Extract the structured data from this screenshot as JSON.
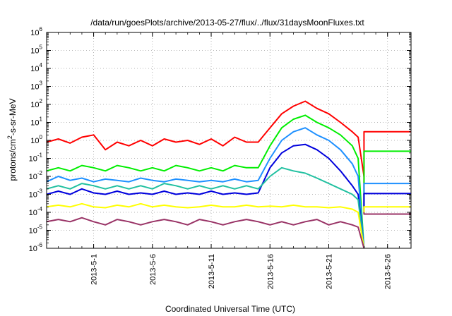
{
  "chart_data": {
    "type": "line",
    "title": "/data/run/goesPlots/archive/2013-05-27/flux/../flux/31daysMoonFluxes.txt",
    "xlabel": "Coordinated Universal Time (UTC)",
    "ylabel": {
      "base": "protons/cm",
      "sup": "2",
      "rest": "-s-sr-MeV"
    },
    "x_scale": "date",
    "xlim": [
      "2013-04-27",
      "2013-05-28"
    ],
    "x_ticks": [
      "2013-5-1",
      "2013-5-6",
      "2013-5-11",
      "2013-5-16",
      "2013-5-21",
      "2013-5-26"
    ],
    "x_tick_dates": [
      "2013-05-01",
      "2013-05-06",
      "2013-05-11",
      "2013-05-16",
      "2013-05-21",
      "2013-05-26"
    ],
    "y_scale": "log",
    "ylim": [
      1e-06,
      1000000.0
    ],
    "y_ticks": [
      {
        "base": "10",
        "exp": "-6",
        "value": 1e-06
      },
      {
        "base": "10",
        "exp": "-5",
        "value": 1e-05
      },
      {
        "base": "10",
        "exp": "-4",
        "value": 0.0001
      },
      {
        "base": "10",
        "exp": "-3",
        "value": 0.001
      },
      {
        "base": "10",
        "exp": "-2",
        "value": 0.01
      },
      {
        "base": "10",
        "exp": "-1",
        "value": 0.1
      },
      {
        "base": "10",
        "exp": "0",
        "value": 1
      },
      {
        "base": "10",
        "exp": "1",
        "value": 10
      },
      {
        "base": "10",
        "exp": "2",
        "value": 100
      },
      {
        "base": "10",
        "exp": "3",
        "value": 1000
      },
      {
        "base": "10",
        "exp": "4",
        "value": 10000
      },
      {
        "base": "10",
        "exp": "5",
        "value": 100000
      },
      {
        "base": "10",
        "exp": "6",
        "value": 1000000
      }
    ],
    "grid": true,
    "series": [
      {
        "color": "#ff0000",
        "points": [
          [
            "2013-04-27",
            0.8
          ],
          [
            "2013-04-28",
            1.2
          ],
          [
            "2013-04-29",
            0.7
          ],
          [
            "2013-04-30",
            1.5
          ],
          [
            "2013-05-01",
            2.0
          ],
          [
            "2013-05-02",
            0.3
          ],
          [
            "2013-05-03",
            0.8
          ],
          [
            "2013-05-04",
            0.5
          ],
          [
            "2013-05-05",
            1.0
          ],
          [
            "2013-05-06",
            0.5
          ],
          [
            "2013-05-07",
            1.2
          ],
          [
            "2013-05-08",
            0.8
          ],
          [
            "2013-05-09",
            1.0
          ],
          [
            "2013-05-10",
            0.6
          ],
          [
            "2013-05-11",
            1.2
          ],
          [
            "2013-05-12",
            0.5
          ],
          [
            "2013-05-13",
            1.5
          ],
          [
            "2013-05-14",
            0.8
          ],
          [
            "2013-05-15",
            0.8
          ],
          [
            "2013-05-16",
            5.0
          ],
          [
            "2013-05-17",
            30
          ],
          [
            "2013-05-18",
            80
          ],
          [
            "2013-05-19",
            150
          ],
          [
            "2013-05-20",
            60
          ],
          [
            "2013-05-21",
            30
          ],
          [
            "2013-05-22",
            10
          ],
          [
            "2013-05-23",
            3
          ],
          [
            "2013-05-23T12:00",
            1.5
          ],
          [
            "2013-05-24",
            0.01
          ]
        ]
      },
      {
        "color": "#ff0000",
        "points": [
          [
            "2013-05-24",
            0.0001
          ],
          [
            "2013-05-24",
            3
          ],
          [
            "2013-05-28",
            3
          ]
        ]
      },
      {
        "color": "#00ee00",
        "points": [
          [
            "2013-04-27",
            0.02
          ],
          [
            "2013-04-28",
            0.03
          ],
          [
            "2013-04-29",
            0.02
          ],
          [
            "2013-04-30",
            0.04
          ],
          [
            "2013-05-01",
            0.03
          ],
          [
            "2013-05-02",
            0.02
          ],
          [
            "2013-05-03",
            0.04
          ],
          [
            "2013-05-04",
            0.03
          ],
          [
            "2013-05-05",
            0.02
          ],
          [
            "2013-05-06",
            0.03
          ],
          [
            "2013-05-07",
            0.02
          ],
          [
            "2013-05-08",
            0.04
          ],
          [
            "2013-05-09",
            0.03
          ],
          [
            "2013-05-10",
            0.02
          ],
          [
            "2013-05-11",
            0.03
          ],
          [
            "2013-05-12",
            0.02
          ],
          [
            "2013-05-13",
            0.04
          ],
          [
            "2013-05-14",
            0.03
          ],
          [
            "2013-05-15",
            0.03
          ],
          [
            "2013-05-16",
            0.5
          ],
          [
            "2013-05-17",
            5
          ],
          [
            "2013-05-18",
            15
          ],
          [
            "2013-05-19",
            25
          ],
          [
            "2013-05-20",
            10
          ],
          [
            "2013-05-21",
            5
          ],
          [
            "2013-05-22",
            2
          ],
          [
            "2013-05-23",
            0.5
          ],
          [
            "2013-05-23T12:00",
            0.1
          ],
          [
            "2013-05-24",
            1e-06
          ]
        ]
      },
      {
        "color": "#00ee00",
        "points": [
          [
            "2013-05-24",
            0.0001
          ],
          [
            "2013-05-24",
            0.25
          ],
          [
            "2013-05-28",
            0.25
          ]
        ]
      },
      {
        "color": "#1e90ff",
        "points": [
          [
            "2013-04-27",
            0.005
          ],
          [
            "2013-04-28",
            0.01
          ],
          [
            "2013-04-29",
            0.006
          ],
          [
            "2013-04-30",
            0.008
          ],
          [
            "2013-05-01",
            0.005
          ],
          [
            "2013-05-02",
            0.007
          ],
          [
            "2013-05-03",
            0.006
          ],
          [
            "2013-05-04",
            0.005
          ],
          [
            "2013-05-05",
            0.008
          ],
          [
            "2013-05-06",
            0.006
          ],
          [
            "2013-05-07",
            0.005
          ],
          [
            "2013-05-08",
            0.007
          ],
          [
            "2013-05-09",
            0.006
          ],
          [
            "2013-05-10",
            0.005
          ],
          [
            "2013-05-11",
            0.006
          ],
          [
            "2013-05-12",
            0.005
          ],
          [
            "2013-05-13",
            0.007
          ],
          [
            "2013-05-14",
            0.005
          ],
          [
            "2013-05-15",
            0.006
          ],
          [
            "2013-05-16",
            0.1
          ],
          [
            "2013-05-17",
            1
          ],
          [
            "2013-05-18",
            3
          ],
          [
            "2013-05-19",
            5
          ],
          [
            "2013-05-20",
            2
          ],
          [
            "2013-05-21",
            1
          ],
          [
            "2013-05-22",
            0.3
          ],
          [
            "2013-05-23",
            0.05
          ],
          [
            "2013-05-23T12:00",
            0.01
          ],
          [
            "2013-05-24",
            1e-06
          ]
        ]
      },
      {
        "color": "#1e90ff",
        "points": [
          [
            "2013-05-24",
            0.0001
          ],
          [
            "2013-05-24",
            0.004
          ],
          [
            "2013-05-28",
            0.004
          ]
        ]
      },
      {
        "color": "#0000dd",
        "points": [
          [
            "2013-04-27",
            0.001
          ],
          [
            "2013-04-28",
            0.0015
          ],
          [
            "2013-04-29",
            0.001
          ],
          [
            "2013-04-30",
            0.002
          ],
          [
            "2013-05-01",
            0.0012
          ],
          [
            "2013-05-02",
            0.001
          ],
          [
            "2013-05-03",
            0.0015
          ],
          [
            "2013-05-04",
            0.001
          ],
          [
            "2013-05-05",
            0.0012
          ],
          [
            "2013-05-06",
            0.001
          ],
          [
            "2013-05-07",
            0.0015
          ],
          [
            "2013-05-08",
            0.001
          ],
          [
            "2013-05-09",
            0.0012
          ],
          [
            "2013-05-10",
            0.001
          ],
          [
            "2013-05-11",
            0.0015
          ],
          [
            "2013-05-12",
            0.001
          ],
          [
            "2013-05-13",
            0.0012
          ],
          [
            "2013-05-14",
            0.001
          ],
          [
            "2013-05-15",
            0.0012
          ],
          [
            "2013-05-16",
            0.03
          ],
          [
            "2013-05-17",
            0.2
          ],
          [
            "2013-05-18",
            0.5
          ],
          [
            "2013-05-19",
            0.6
          ],
          [
            "2013-05-20",
            0.3
          ],
          [
            "2013-05-21",
            0.1
          ],
          [
            "2013-05-22",
            0.02
          ],
          [
            "2013-05-23",
            0.003
          ],
          [
            "2013-05-23T12:00",
            0.001
          ],
          [
            "2013-05-24",
            1e-06
          ]
        ]
      },
      {
        "color": "#0000dd",
        "points": [
          [
            "2013-05-24",
            0.0001
          ],
          [
            "2013-05-24",
            0.0011
          ],
          [
            "2013-05-28",
            0.0011
          ]
        ]
      },
      {
        "color": "#20c0a0",
        "points": [
          [
            "2013-04-27",
            0.002
          ],
          [
            "2013-04-28",
            0.003
          ],
          [
            "2013-04-29",
            0.002
          ],
          [
            "2013-04-30",
            0.004
          ],
          [
            "2013-05-01",
            0.003
          ],
          [
            "2013-05-02",
            0.002
          ],
          [
            "2013-05-03",
            0.003
          ],
          [
            "2013-05-04",
            0.002
          ],
          [
            "2013-05-05",
            0.003
          ],
          [
            "2013-05-06",
            0.002
          ],
          [
            "2013-05-07",
            0.004
          ],
          [
            "2013-05-08",
            0.003
          ],
          [
            "2013-05-09",
            0.002
          ],
          [
            "2013-05-10",
            0.003
          ],
          [
            "2013-05-11",
            0.002
          ],
          [
            "2013-05-12",
            0.003
          ],
          [
            "2013-05-13",
            0.002
          ],
          [
            "2013-05-14",
            0.003
          ],
          [
            "2013-05-15",
            0.002
          ],
          [
            "2013-05-16",
            0.01
          ],
          [
            "2013-05-17",
            0.03
          ],
          [
            "2013-05-18",
            0.02
          ],
          [
            "2013-05-19",
            0.015
          ],
          [
            "2013-05-20",
            0.008
          ],
          [
            "2013-05-21",
            0.004
          ],
          [
            "2013-05-22",
            0.002
          ],
          [
            "2013-05-23",
            0.001
          ],
          [
            "2013-05-23T12:00",
            0.0005
          ],
          [
            "2013-05-24",
            1e-06
          ]
        ]
      },
      {
        "color": "#ffff00",
        "points": [
          [
            "2013-04-27",
            0.0002
          ],
          [
            "2013-04-28",
            0.00025
          ],
          [
            "2013-04-29",
            0.0002
          ],
          [
            "2013-04-30",
            0.0003
          ],
          [
            "2013-05-01",
            0.0002
          ],
          [
            "2013-05-02",
            0.00018
          ],
          [
            "2013-05-03",
            0.00025
          ],
          [
            "2013-05-04",
            0.0002
          ],
          [
            "2013-05-05",
            0.0003
          ],
          [
            "2013-05-06",
            0.0002
          ],
          [
            "2013-05-07",
            0.00025
          ],
          [
            "2013-05-08",
            0.0002
          ],
          [
            "2013-05-09",
            0.00018
          ],
          [
            "2013-05-10",
            0.0002
          ],
          [
            "2013-05-11",
            0.00025
          ],
          [
            "2013-05-12",
            0.0002
          ],
          [
            "2013-05-13",
            0.0002
          ],
          [
            "2013-05-14",
            0.00025
          ],
          [
            "2013-05-15",
            0.0002
          ],
          [
            "2013-05-16",
            0.00022
          ],
          [
            "2013-05-17",
            0.0002
          ],
          [
            "2013-05-18",
            0.00025
          ],
          [
            "2013-05-19",
            0.0002
          ],
          [
            "2013-05-20",
            0.0002
          ],
          [
            "2013-05-21",
            0.00018
          ],
          [
            "2013-05-22",
            0.0002
          ],
          [
            "2013-05-23",
            0.00015
          ],
          [
            "2013-05-23T12:00",
            0.0001
          ],
          [
            "2013-05-24",
            1e-06
          ]
        ]
      },
      {
        "color": "#ffff00",
        "points": [
          [
            "2013-05-24",
            0.0001
          ],
          [
            "2013-05-24",
            0.0002
          ],
          [
            "2013-05-28",
            0.0002
          ]
        ]
      },
      {
        "color": "#993366",
        "points": [
          [
            "2013-04-27",
            3e-05
          ],
          [
            "2013-04-28",
            4e-05
          ],
          [
            "2013-04-29",
            3e-05
          ],
          [
            "2013-04-30",
            5e-05
          ],
          [
            "2013-05-01",
            3e-05
          ],
          [
            "2013-05-02",
            2e-05
          ],
          [
            "2013-05-03",
            4e-05
          ],
          [
            "2013-05-04",
            3e-05
          ],
          [
            "2013-05-05",
            2e-05
          ],
          [
            "2013-05-06",
            3e-05
          ],
          [
            "2013-05-07",
            4e-05
          ],
          [
            "2013-05-08",
            3e-05
          ],
          [
            "2013-05-09",
            2e-05
          ],
          [
            "2013-05-10",
            4e-05
          ],
          [
            "2013-05-11",
            3e-05
          ],
          [
            "2013-05-12",
            2e-05
          ],
          [
            "2013-05-13",
            3e-05
          ],
          [
            "2013-05-14",
            4e-05
          ],
          [
            "2013-05-15",
            3e-05
          ],
          [
            "2013-05-16",
            2e-05
          ],
          [
            "2013-05-17",
            3e-05
          ],
          [
            "2013-05-18",
            2e-05
          ],
          [
            "2013-05-19",
            3e-05
          ],
          [
            "2013-05-20",
            4e-05
          ],
          [
            "2013-05-21",
            2e-05
          ],
          [
            "2013-05-22",
            3e-05
          ],
          [
            "2013-05-23",
            2e-05
          ],
          [
            "2013-05-23T12:00",
            1.5e-05
          ],
          [
            "2013-05-24",
            1e-06
          ]
        ]
      },
      {
        "color": "#993366",
        "points": [
          [
            "2013-05-24",
            0.0001
          ],
          [
            "2013-05-24",
            8e-05
          ],
          [
            "2013-05-28",
            8e-05
          ]
        ]
      }
    ]
  }
}
